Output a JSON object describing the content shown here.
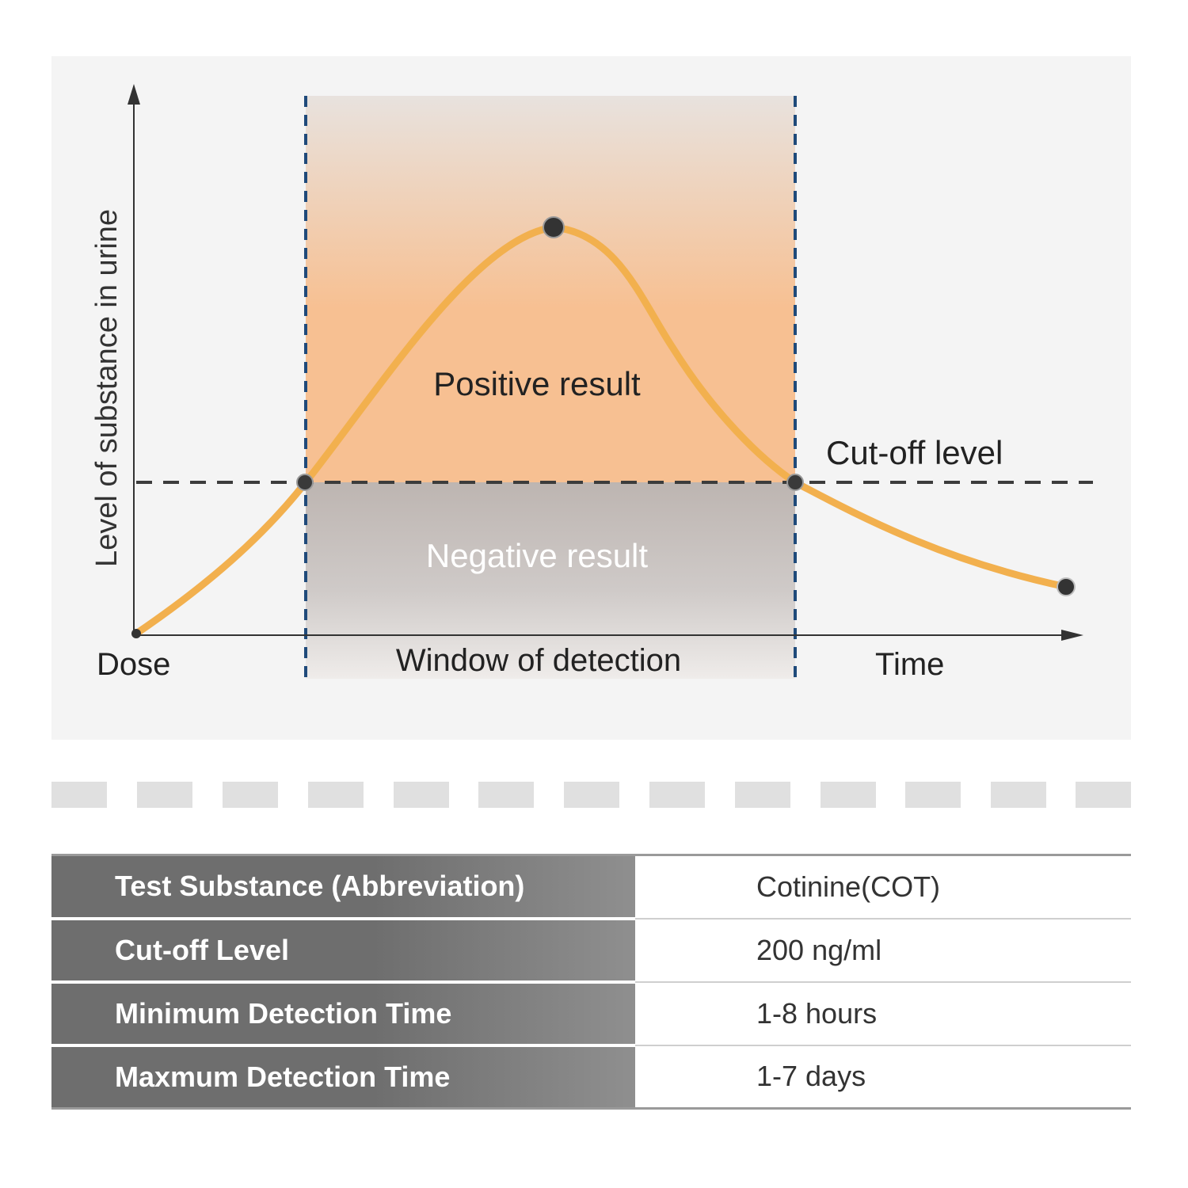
{
  "diagram": {
    "y_axis_label": "Level of substance in urine",
    "x_axis_label": "Time",
    "origin_label": "Dose",
    "window_label": "Window of detection",
    "positive_label": "Positive result",
    "negative_label": "Negative result",
    "cutoff_label": "Cut-off level",
    "colors": {
      "curve": "#f2b04e",
      "positive_top": "#e8e2de",
      "positive_bottom": "#f7c092",
      "negative_top": "#bfb7b3",
      "negative_bottom": "#ece9e8",
      "window_border": "#1f4a7a",
      "panel_bg": "#f4f4f4"
    }
  },
  "table": {
    "rows": [
      {
        "label": "Test Substance (Abbreviation)",
        "value": "Cotinine(COT)"
      },
      {
        "label": "Cut-off Level",
        "value": "200 ng/ml"
      },
      {
        "label": "Minimum Detection Time",
        "value": "1-8 hours"
      },
      {
        "label": "Maxmum Detection Time",
        "value": "1-7 days"
      }
    ]
  }
}
